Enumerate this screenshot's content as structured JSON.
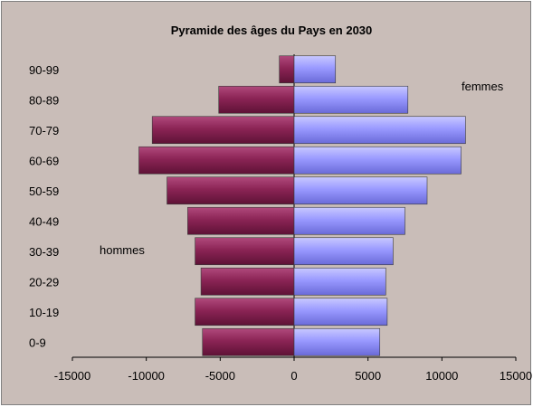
{
  "chart_data": {
    "type": "bar",
    "orientation": "horizontal",
    "subtype": "population-pyramid",
    "title": "Pyramide des âges du Pays en 2030",
    "categories": [
      "0-9",
      "10-19",
      "20-29",
      "30-39",
      "40-49",
      "50-59",
      "60-69",
      "70-79",
      "80-89",
      "90-99"
    ],
    "series": [
      {
        "name": "hommes",
        "values": [
          -6200,
          -6700,
          -6300,
          -6700,
          -7200,
          -8600,
          -10500,
          -9600,
          -5100,
          -1000
        ],
        "color": "#8b2455"
      },
      {
        "name": "femmes",
        "values": [
          5800,
          6300,
          6200,
          6700,
          7500,
          9000,
          11300,
          11600,
          7700,
          2800
        ],
        "color": "#9999ff"
      }
    ],
    "xlim": [
      -15000,
      15000
    ],
    "xticks": [
      -15000,
      -10000,
      -5000,
      0,
      5000,
      10000,
      15000
    ],
    "xtick_labels": [
      "-15000",
      "-10000",
      "-5000",
      "0",
      "5000",
      "10000",
      "15000"
    ],
    "grid": false,
    "legend": "none"
  }
}
